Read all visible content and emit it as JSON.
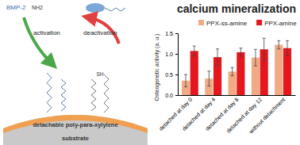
{
  "chart_data": {
    "type": "bar",
    "title": "calcium mineralization",
    "y_label": "Osteogenetic activity (a. u.)",
    "categories": [
      "detached at day 0",
      "detached at day 4",
      "detached at day 8",
      "detached at day 12",
      "without detachment"
    ],
    "series": [
      {
        "name": "PPX-ss-amine",
        "color": "#f2aa84",
        "values": [
          0.35,
          0.4,
          0.57,
          0.91,
          1.22
        ],
        "errors": [
          0.15,
          0.18,
          0.1,
          0.2,
          0.1
        ]
      },
      {
        "name": "PPX-amine",
        "color": "#e3171d",
        "values": [
          1.07,
          0.92,
          1.04,
          1.11,
          1.14
        ],
        "errors": [
          0.12,
          0.2,
          0.1,
          0.27,
          0.18
        ]
      }
    ],
    "ylim": [
      0,
      1.5
    ],
    "yticks": [
      {
        "value": 0,
        "label": "0.0"
      },
      {
        "value": 0.5,
        "label": "0.5"
      },
      {
        "value": 1,
        "label": "1.0"
      },
      {
        "value": 1.5,
        "label": "1.5"
      }
    ],
    "grid": false,
    "legend": "top"
  },
  "diagram": {
    "protein": "BMP-2",
    "amine": "NH2",
    "activation": "activation",
    "deactivation": "deactivation",
    "thiol": "SH",
    "layer": "detachable poly-para-xylylene",
    "substrate": "substrate"
  }
}
